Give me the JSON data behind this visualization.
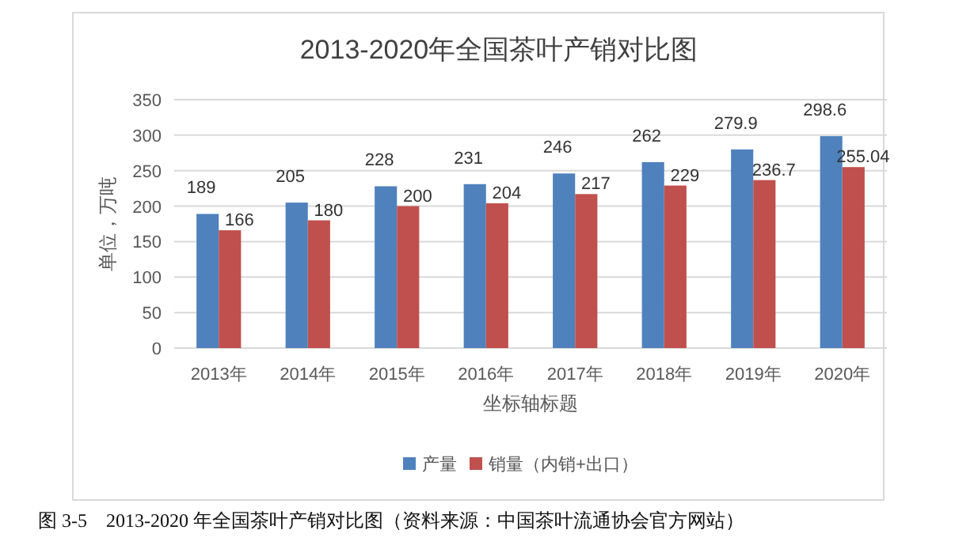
{
  "chart_data": {
    "type": "bar",
    "title": "2013-2020年全国茶叶产销对比图",
    "xlabel": "坐标轴标题",
    "ylabel": "单位，万吨",
    "categories": [
      "2013年",
      "2014年",
      "2015年",
      "2016年",
      "2017年",
      "2018年",
      "2019年",
      "2020年"
    ],
    "series": [
      {
        "name": "产量",
        "color": "#4f81bd",
        "values": [
          189,
          205,
          228,
          231,
          246,
          262,
          279.9,
          298.6
        ]
      },
      {
        "name": "销量（内销+出口）",
        "color": "#c0504d",
        "values": [
          166,
          180,
          200,
          204,
          217,
          229,
          236.7,
          255.04
        ]
      }
    ],
    "ylim": [
      0,
      350
    ],
    "yticks": [
      0,
      50,
      100,
      150,
      200,
      250,
      300,
      350
    ],
    "grid": "y",
    "legend": "bottom",
    "data_labels": true,
    "annotations": [
      "图 3-5　2013-2020 年全国茶叶产销对比图（资料来源：中国茶叶流通协会官方网站）"
    ]
  }
}
